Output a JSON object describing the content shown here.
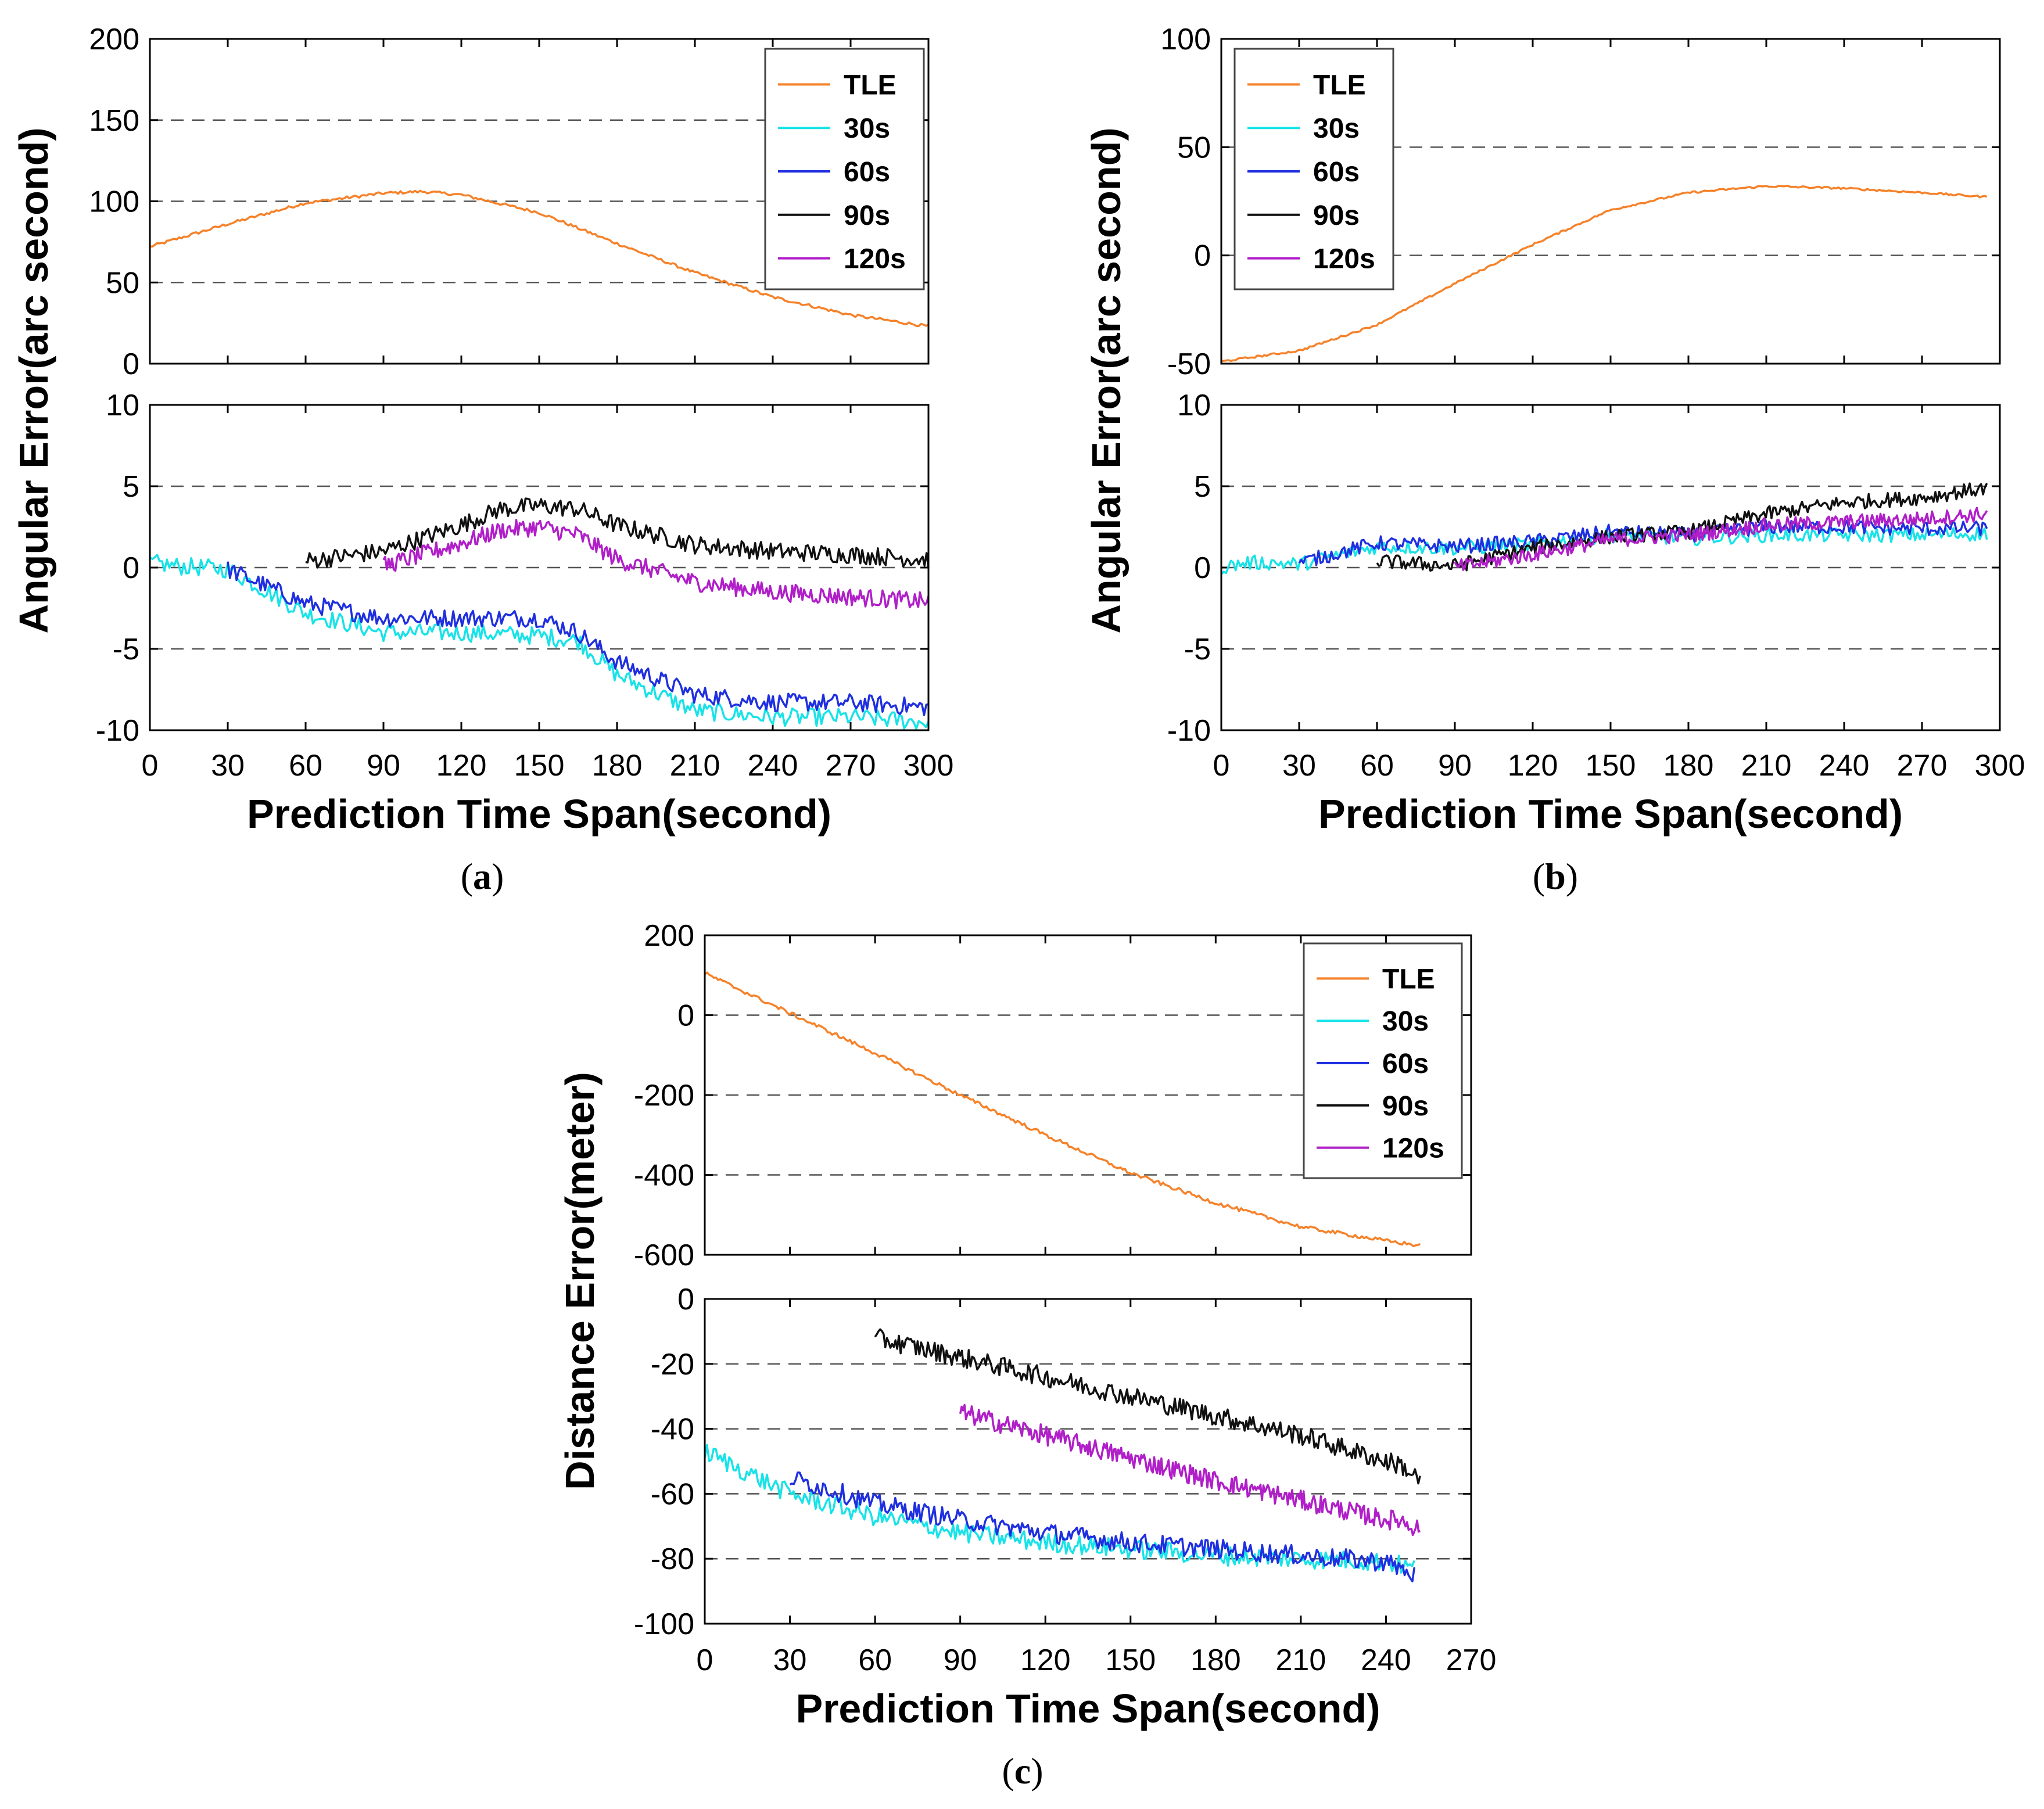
{
  "figure": {
    "captions": [
      "a",
      "b",
      "c"
    ],
    "series_colors": {
      "TLE": "#f5822a",
      "30s": "#17e3e8",
      "60s": "#1f2fe0",
      "90s": "#111111",
      "120s": "#b01fc8"
    }
  },
  "chart_data": [
    {
      "id": "a",
      "type": "line",
      "caption": "a",
      "ylabel": "Angular Error(arc second)",
      "xlabel": "Prediction Time Span(second)",
      "xlim": [
        0,
        300
      ],
      "xticks": [
        "0",
        "30",
        "60",
        "90",
        "120",
        "150",
        "180",
        "210",
        "240",
        "270",
        "300"
      ],
      "grid": "horizontal dashed",
      "legend": {
        "placement": "top-right",
        "entries": [
          "TLE",
          "30s",
          "60s",
          "90s",
          "120s"
        ]
      },
      "panels": [
        {
          "ylim": [
            0,
            200
          ],
          "yticks": [
            "0",
            "50",
            "100",
            "150",
            "200"
          ],
          "series": [
            {
              "name": "TLE",
              "x": [
                0,
                30,
                60,
                90,
                105,
                120,
                150,
                180,
                210,
                240,
                270,
                300
              ],
              "y": [
                72,
                86,
                99,
                105,
                106,
                104,
                93,
                74,
                56,
                41,
                30,
                23
              ]
            }
          ]
        },
        {
          "ylim": [
            -10,
            10
          ],
          "yticks": [
            "-10",
            "-5",
            "0",
            "5",
            "10"
          ],
          "series": [
            {
              "name": "30s",
              "x": [
                0,
                10,
                20,
                30,
                60,
                90,
                120,
                150,
                165,
                180,
                210,
                240,
                270,
                300
              ],
              "y": [
                0.3,
                0.1,
                0,
                -0.1,
                -2.8,
                -4,
                -4,
                -4.2,
                -4.5,
                -6.6,
                -8.8,
                -9.2,
                -9.2,
                -9.5
              ]
            },
            {
              "name": "60s",
              "x": [
                30,
                60,
                90,
                120,
                150,
                165,
                180,
                210,
                240,
                270,
                300
              ],
              "y": [
                -0.1,
                -2.2,
                -3.1,
                -3.1,
                -3.1,
                -4,
                -5.8,
                -7.8,
                -8.3,
                -8.3,
                -8.6
              ]
            },
            {
              "name": "90s",
              "x": [
                60,
                90,
                120,
                135,
                150,
                165,
                180,
                210,
                240,
                270,
                300
              ],
              "y": [
                0.4,
                1,
                2.6,
                3.6,
                3.8,
                3.6,
                2.6,
                1.4,
                1,
                0.8,
                0.5
              ]
            },
            {
              "name": "120s",
              "x": [
                90,
                120,
                135,
                150,
                165,
                180,
                210,
                240,
                270,
                300
              ],
              "y": [
                0.1,
                1.5,
                2.3,
                2.5,
                2,
                0.5,
                -0.9,
                -1.5,
                -1.8,
                -2.1
              ]
            }
          ]
        }
      ]
    },
    {
      "id": "b",
      "type": "line",
      "caption": "b",
      "ylabel": "Angular Error(arc second)",
      "xlabel": "Prediction Time Span(second)",
      "xlim": [
        0,
        300
      ],
      "xticks": [
        "0",
        "30",
        "60",
        "90",
        "120",
        "150",
        "180",
        "210",
        "240",
        "270",
        "300"
      ],
      "grid": "horizontal dashed",
      "legend": {
        "placement": "top-left",
        "entries": [
          "TLE",
          "30s",
          "60s",
          "90s",
          "120s"
        ]
      },
      "panels": [
        {
          "ylim": [
            -50,
            100
          ],
          "yticks": [
            "-50",
            "0",
            "50",
            "100"
          ],
          "series": [
            {
              "name": "TLE",
              "x": [
                0,
                30,
                60,
                90,
                120,
                150,
                180,
                210,
                240,
                270,
                295
              ],
              "y": [
                -49,
                -44,
                -32,
                -13,
                5,
                21,
                29,
                32,
                31,
                29,
                27
              ]
            }
          ]
        },
        {
          "ylim": [
            -10,
            10
          ],
          "yticks": [
            "-10",
            "-5",
            "0",
            "5",
            "10"
          ],
          "series": [
            {
              "name": "30s",
              "x": [
                0,
                10,
                20,
                30,
                60,
                90,
                120,
                150,
                180,
                210,
                240,
                270,
                295
              ],
              "y": [
                0,
                0.3,
                0.3,
                0.2,
                1.3,
                1.2,
                1.4,
                2,
                1.8,
                2,
                2,
                2,
                2.1
              ]
            },
            {
              "name": "60s",
              "x": [
                30,
                60,
                90,
                120,
                150,
                180,
                210,
                240,
                270,
                295
              ],
              "y": [
                0.3,
                1.5,
                1.3,
                1.6,
                2.2,
                2,
                2.5,
                2.5,
                2.4,
                2.4
              ]
            },
            {
              "name": "90s",
              "x": [
                60,
                90,
                120,
                150,
                180,
                210,
                240,
                270,
                295
              ],
              "y": [
                0.4,
                0.1,
                1.2,
                1.9,
                2.2,
                3.3,
                4,
                4.3,
                4.9
              ]
            },
            {
              "name": "120s",
              "x": [
                90,
                120,
                150,
                180,
                210,
                240,
                270,
                295
              ],
              "y": [
                0,
                0.8,
                1.7,
                2,
                2.6,
                2.8,
                3,
                3.3
              ]
            }
          ]
        }
      ]
    },
    {
      "id": "c",
      "type": "line",
      "caption": "c",
      "ylabel": "Distance Error(meter)",
      "xlabel": "Prediction Time Span(second)",
      "xlim": [
        0,
        270
      ],
      "xticks": [
        "0",
        "30",
        "60",
        "90",
        "120",
        "150",
        "180",
        "210",
        "240",
        "270"
      ],
      "grid": "horizontal dashed",
      "legend": {
        "placement": "top-right",
        "entries": [
          "TLE",
          "30s",
          "60s",
          "90s",
          "120s"
        ]
      },
      "panels": [
        {
          "ylim": [
            -600,
            200
          ],
          "yticks": [
            "-600",
            "-400",
            "-200",
            "0",
            "200"
          ],
          "series": [
            {
              "name": "TLE",
              "x": [
                0,
                30,
                60,
                90,
                120,
                150,
                180,
                210,
                240,
                252
              ],
              "y": [
                105,
                5,
                -95,
                -200,
                -300,
                -395,
                -470,
                -530,
                -565,
                -577
              ]
            }
          ]
        },
        {
          "ylim": [
            -100,
            0
          ],
          "yticks": [
            "-100",
            "-80",
            "-60",
            "-40",
            "-20",
            "0"
          ],
          "series": [
            {
              "name": "30s",
              "x": [
                0,
                30,
                60,
                90,
                120,
                150,
                180,
                210,
                240,
                250
              ],
              "y": [
                -47,
                -60,
                -67,
                -72,
                -75,
                -77,
                -79,
                -80,
                -81,
                -83
              ]
            },
            {
              "name": "60s",
              "x": [
                30,
                60,
                90,
                120,
                150,
                180,
                210,
                240,
                250
              ],
              "y": [
                -55,
                -63,
                -68,
                -72,
                -75,
                -77,
                -79,
                -81,
                -85
              ]
            },
            {
              "name": "90s",
              "x": [
                60,
                90,
                120,
                150,
                180,
                210,
                240,
                245,
                252
              ],
              "y": [
                -12,
                -18,
                -24,
                -30,
                -36,
                -42,
                -50,
                -51,
                -56
              ]
            },
            {
              "name": "120s",
              "x": [
                90,
                120,
                150,
                180,
                210,
                240,
                245,
                252
              ],
              "y": [
                -35,
                -42,
                -49,
                -56,
                -62,
                -68,
                -68,
                -71
              ]
            }
          ]
        }
      ]
    }
  ]
}
